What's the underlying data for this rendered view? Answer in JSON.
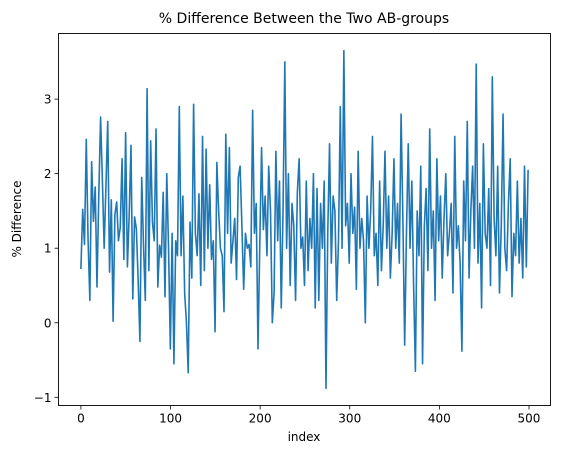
{
  "chart_data": {
    "type": "line",
    "title": "% Difference Between the Two AB-groups",
    "xlabel": "index",
    "ylabel": "% Difference",
    "xlim": [
      -25,
      524
    ],
    "ylim": [
      -1.11,
      3.88
    ],
    "xticks": [
      0,
      100,
      200,
      300,
      400,
      500
    ],
    "yticks": [
      -1,
      0,
      1,
      2,
      3
    ],
    "grid": false,
    "line_color": "#1f77b4",
    "series": [
      {
        "values": [
          0.72,
          1.52,
          1.05,
          2.46,
          1.12,
          0.3,
          2.16,
          1.36,
          1.82,
          0.48,
          1.71,
          2.76,
          1.92,
          1.0,
          1.84,
          2.7,
          0.68,
          1.65,
          0.02,
          1.45,
          1.62,
          1.1,
          1.28,
          2.2,
          0.85,
          2.55,
          0.75,
          1.45,
          2.38,
          0.32,
          1.42,
          1.26,
          0.58,
          -0.25,
          1.95,
          1.04,
          0.3,
          3.14,
          0.7,
          2.44,
          1.35,
          1.1,
          2.6,
          0.48,
          1.04,
          0.88,
          1.75,
          0.35,
          2.0,
          1.0,
          -0.35,
          1.2,
          -0.55,
          1.1,
          0.9,
          2.9,
          0.9,
          1.7,
          0.4,
          0.0,
          -0.67,
          1.35,
          0.6,
          2.93,
          1.2,
          0.9,
          1.73,
          0.5,
          2.5,
          0.7,
          2.33,
          1.0,
          1.85,
          0.85,
          1.1,
          -0.12,
          2.15,
          1.5,
          1.0,
          0.9,
          0.15,
          2.53,
          1.2,
          2.35,
          0.8,
          1.1,
          1.4,
          0.58,
          1.95,
          2.1,
          1.3,
          0.45,
          1.2,
          1.0,
          1.05,
          0.75,
          2.85,
          1.2,
          1.6,
          -0.35,
          1.05,
          2.35,
          1.25,
          1.7,
          0.9,
          2.1,
          1.5,
          0.0,
          0.4,
          2.3,
          1.1,
          1.9,
          0.2,
          1.5,
          3.5,
          1.0,
          2.0,
          0.5,
          1.6,
          1.3,
          0.3,
          1.75,
          2.2,
          1.0,
          1.15,
          0.5,
          1.9,
          0.7,
          1.4,
          1.0,
          2.0,
          0.2,
          1.8,
          0.3,
          1.6,
          1.0,
          1.9,
          -0.88,
          1.2,
          2.4,
          0.8,
          1.7,
          1.5,
          0.3,
          1.1,
          2.9,
          1.0,
          3.65,
          1.3,
          1.6,
          0.8,
          2.0,
          1.2,
          1.55,
          0.45,
          2.3,
          1.0,
          1.4,
          1.1,
          0.0,
          1.7,
          1.0,
          1.5,
          2.5,
          0.9,
          1.2,
          0.5,
          1.9,
          0.7,
          1.3,
          2.3,
          1.0,
          1.7,
          0.6,
          1.2,
          2.2,
          1.0,
          1.6,
          0.8,
          2.8,
          1.4,
          -0.3,
          1.2,
          2.4,
          1.0,
          1.9,
          0.5,
          -0.65,
          1.5,
          0.9,
          2.1,
          -0.55,
          1.3,
          1.8,
          0.7,
          2.6,
          1.0,
          1.5,
          0.3,
          2.2,
          1.1,
          1.7,
          0.6,
          1.4,
          2.0,
          0.9,
          1.2,
          1.6,
          0.4,
          2.5,
          1.0,
          1.3,
          0.8,
          -0.38,
          1.9,
          1.1,
          2.7,
          0.6,
          1.5,
          2.1,
          1.0,
          3.47,
          0.8,
          1.6,
          0.2,
          2.4,
          1.2,
          1.0,
          1.8,
          0.5,
          3.3,
          1.4,
          0.9,
          2.1,
          0.4,
          1.3,
          2.8,
          1.0,
          0.7,
          1.6,
          2.2,
          0.35,
          1.2,
          0.9,
          1.9,
          0.8,
          1.4,
          0.6,
          2.1,
          0.75,
          2.05
        ]
      }
    ]
  }
}
